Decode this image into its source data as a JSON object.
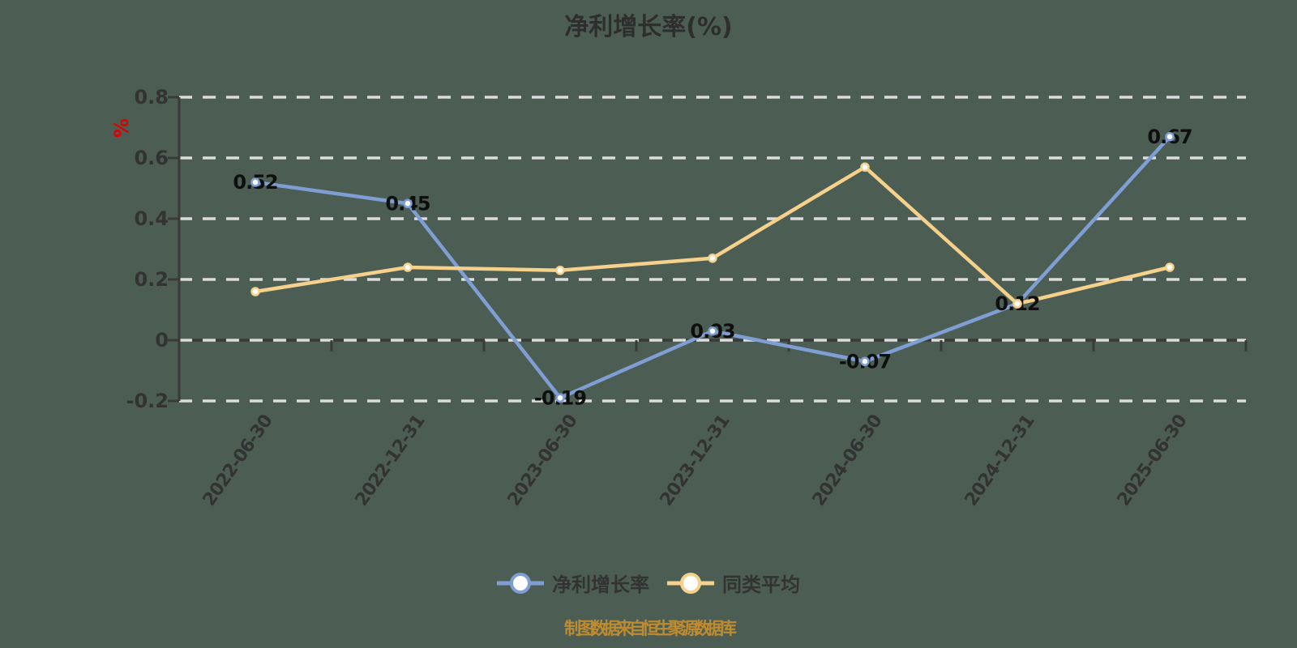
{
  "chart_data": {
    "type": "line",
    "title": "净利增长率(%)",
    "categories": [
      "2022-06-30",
      "2022-12-31",
      "2023-06-30",
      "2023-12-31",
      "2024-06-30",
      "2024-12-31",
      "2025-06-30"
    ],
    "series": [
      {
        "name": "净利增长率",
        "color": "#7f9fd4",
        "values": [
          0.52,
          0.45,
          -0.19,
          0.03,
          -0.07,
          0.12,
          0.67
        ],
        "labels": [
          "0.52",
          "0.45",
          "-0.19",
          "0.03",
          "-0.07",
          "0.12",
          "0.67"
        ]
      },
      {
        "name": "同类平均",
        "color": "#f6d18c",
        "values": [
          0.16,
          0.24,
          0.23,
          0.27,
          0.57,
          0.12,
          0.24
        ],
        "labels": null
      }
    ],
    "y_axis": {
      "unit": "%",
      "min": -0.2,
      "max": 0.8,
      "ticks": [
        {
          "label": "0.8",
          "value": 0.8
        },
        {
          "label": "0.6",
          "value": 0.6
        },
        {
          "label": "0.4",
          "value": 0.4
        },
        {
          "label": "0.2",
          "value": 0.2
        },
        {
          "label": "0",
          "value": 0
        },
        {
          "label": "-0.2",
          "value": -0.2
        }
      ]
    },
    "grid": {
      "horizontal_dashed": true,
      "vertical": false
    },
    "legend_position": "bottom",
    "source_note": "制图数据来自恒生聚源数据库",
    "colors": {
      "background": "#4c5e53",
      "grid_line": "#dcdcdc",
      "axis_line": "#3a3a3a",
      "title_text": "#2e2e2e",
      "tick_text": "#333333",
      "data_label_text": "#0f0f0f",
      "unit_text": "#dd0000",
      "source_text": "#bf8b2e",
      "marker_fill": "#ffffff"
    }
  }
}
